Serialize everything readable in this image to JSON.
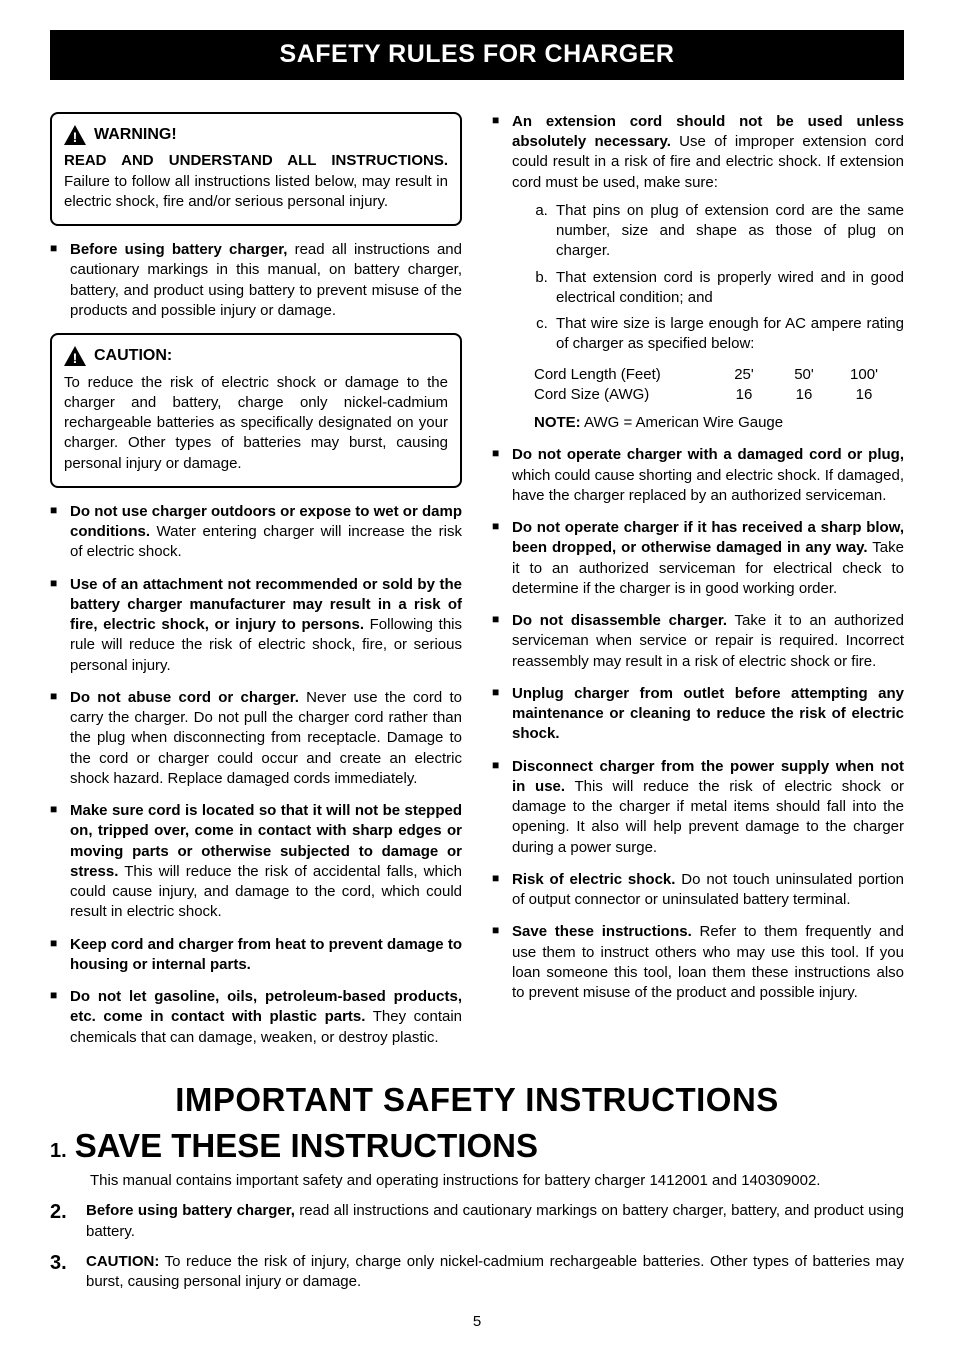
{
  "title": "SAFETY RULES FOR CHARGER",
  "warning": {
    "label": "WARNING!",
    "lead_bold": "READ AND UNDERSTAND ALL INSTRUCTIONS.",
    "lead_rest": " Failure to follow all instructions listed below, may result in electric shock, fire and/or serious personal injury."
  },
  "caution": {
    "label": "CAUTION:",
    "text": "To reduce the risk of electric shock or damage to the charger and battery, charge only nickel-cadmium rechargeable batteries as specifically designated on your charger. Other types of batteries may burst, causing personal injury or damage."
  },
  "left_intro": {
    "bold": "Before using battery charger,",
    "rest": " read all instructions and cautionary markings in this manual, on battery charger, battery, and product using battery to prevent misuse of the products and possible injury or damage."
  },
  "left_bullets": [
    {
      "bold": "Do not use charger outdoors or expose to wet or damp conditions.",
      "rest": " Water entering charger will increase the risk of electric shock."
    },
    {
      "bold": "Use of an attachment not recommended or sold by the battery charger manufacturer may result in a risk of fire, electric shock, or injury to persons.",
      "rest": " Following this rule will reduce the risk of electric shock, fire, or serious personal injury."
    },
    {
      "bold": "Do not abuse cord or charger.",
      "rest": " Never use the cord to carry the charger. Do not pull the charger cord rather than the plug when disconnecting from receptacle. Damage to the cord or charger could occur and create an electric shock hazard. Replace damaged cords immediately."
    },
    {
      "bold": "Make sure cord is located so that it will not be stepped on, tripped over, come in contact with sharp edges or moving parts or otherwise subjected to damage or stress.",
      "rest": " This will reduce the risk of accidental falls, which could cause injury, and damage to the cord, which could result in electric shock."
    },
    {
      "bold": "Keep cord and charger from heat to prevent damage to housing or internal parts.",
      "rest": ""
    },
    {
      "bold": "Do not let gasoline, oils, petroleum-based products, etc. come in contact with plastic parts.",
      "rest": " They contain chemicals that can damage, weaken, or destroy plastic."
    }
  ],
  "right_ext": {
    "bold": "An extension cord should not be used unless absolutely necessary.",
    "rest": " Use of improper extension cord could result in a risk of fire and electric shock. If extension cord must be used, make sure:",
    "letters": [
      "That pins on plug of extension cord are the same number, size and shape as those of plug on charger.",
      "That extension cord is properly wired and in good electrical condition; and",
      "That wire size is large enough for AC ampere rating of charger as specified below:"
    ]
  },
  "cord_table": {
    "row1_label": "Cord Length (Feet)",
    "row1_vals": [
      "25'",
      "50'",
      "100'"
    ],
    "row2_label": "Cord Size (AWG)",
    "row2_vals": [
      "16",
      "16",
      "16"
    ],
    "note_bold": "NOTE:",
    "note_rest": " AWG = American Wire Gauge"
  },
  "right_bullets": [
    {
      "bold": "Do not operate charger with a damaged cord or plug,",
      "rest": " which could cause shorting and electric shock. If damaged, have the charger replaced by an authorized serviceman."
    },
    {
      "bold": "Do not operate charger if it has received a sharp blow, been dropped, or otherwise damaged in any way.",
      "rest": " Take it to an authorized serviceman for electrical check to determine if the charger is in good working order."
    },
    {
      "bold": "Do not disassemble charger.",
      "rest": " Take it to an authorized serviceman when service or repair is required. Incorrect reassembly may result in a risk of electric shock or fire."
    },
    {
      "bold": "Unplug charger from outlet before attempting any maintenance or cleaning to reduce the risk of electric shock.",
      "rest": ""
    },
    {
      "bold": "Disconnect charger from the power supply when not in use.",
      "rest": " This will reduce the risk of electric shock or damage to the charger if metal items should fall into the opening. It also will help prevent damage to the charger during a power surge."
    },
    {
      "bold": "Risk of electric shock.",
      "rest": " Do not touch uninsulated portion of output connector or uninsulated battery terminal."
    },
    {
      "bold": "Save these instructions.",
      "rest": " Refer to them frequently and use them to instruct others who may use this tool. If you loan someone this tool, loan them these instructions also to prevent misuse of the product and possible injury."
    }
  ],
  "section2": {
    "h1": "IMPORTANT SAFETY INSTRUCTIONS",
    "num1": "1.",
    "h2": "SAVE THESE INSTRUCTIONS",
    "sub": "This manual contains important safety and operating instructions for battery charger 1412001 and 140309002.",
    "items": [
      {
        "bold": "Before using battery charger,",
        "rest": " read all instructions and cautionary markings on battery charger, battery, and product using battery."
      },
      {
        "bold": "CAUTION:",
        "rest": " To reduce the risk of injury, charge only nickel-cadmium rechargeable batteries. Other types of batteries may burst, causing personal injury or damage."
      }
    ]
  },
  "page_number": "5"
}
